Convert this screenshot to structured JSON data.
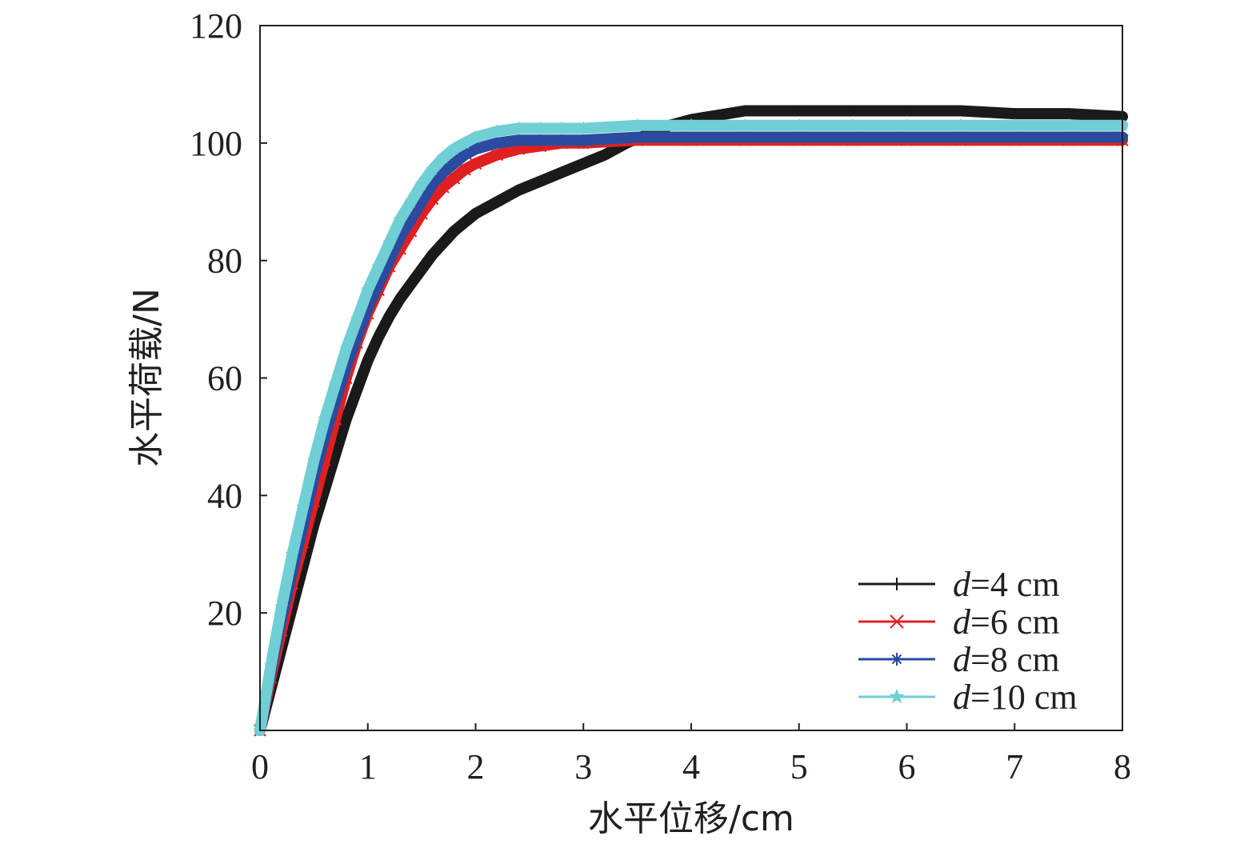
{
  "chart_data": {
    "type": "line",
    "xlabel": "水平位移/cm",
    "ylabel": "水平荷载/N",
    "xlim": [
      0,
      8
    ],
    "ylim": [
      0,
      120
    ],
    "xticks": [
      0,
      1,
      2,
      3,
      4,
      5,
      6,
      7,
      8
    ],
    "yticks": [
      20,
      40,
      60,
      80,
      100,
      120
    ],
    "xtick_labels": [
      "0",
      "1",
      "2",
      "3",
      "4",
      "5",
      "6",
      "7",
      "8"
    ],
    "ytick_labels": [
      "20",
      "40",
      "60",
      "80",
      "100",
      "120"
    ],
    "grid": false,
    "legend_position": "bottom-right",
    "series": [
      {
        "name_var": "d",
        "name_rest": "=4 cm",
        "color": "#1a1a1a",
        "marker": "plus",
        "x": [
          0,
          0.1,
          0.2,
          0.3,
          0.4,
          0.5,
          0.6,
          0.7,
          0.8,
          0.9,
          1.0,
          1.1,
          1.2,
          1.3,
          1.4,
          1.5,
          1.6,
          1.7,
          1.8,
          1.9,
          2.0,
          2.2,
          2.4,
          2.6,
          2.8,
          3.0,
          3.2,
          3.4,
          3.6,
          3.8,
          4.0,
          4.5,
          5.0,
          5.5,
          6.0,
          6.5,
          7.0,
          7.5,
          8.0
        ],
        "y": [
          0,
          7,
          14,
          21,
          28,
          35,
          41,
          47,
          53,
          58,
          63,
          67,
          70.5,
          73.5,
          76,
          78.5,
          81,
          83,
          85,
          86.5,
          88,
          90,
          92,
          93.5,
          95,
          96.5,
          98,
          100,
          101.5,
          103,
          104,
          105.5,
          105.5,
          105.5,
          105.5,
          105.5,
          105,
          105,
          104.5
        ]
      },
      {
        "name_var": "d",
        "name_rest": "=6 cm",
        "color": "#e02020",
        "marker": "x",
        "x": [
          0,
          0.1,
          0.2,
          0.3,
          0.4,
          0.5,
          0.6,
          0.7,
          0.8,
          0.9,
          1.0,
          1.1,
          1.2,
          1.3,
          1.4,
          1.5,
          1.6,
          1.7,
          1.8,
          1.9,
          2.0,
          2.2,
          2.4,
          2.6,
          2.8,
          3.0,
          3.5,
          4.0,
          4.5,
          5.0,
          5.5,
          6.0,
          6.5,
          7.0,
          7.5,
          8.0
        ],
        "y": [
          0,
          9,
          17,
          25,
          32,
          39,
          46,
          53,
          60,
          66,
          71,
          75,
          79,
          82,
          85,
          88,
          90.5,
          92.5,
          94,
          95.5,
          96.5,
          98,
          99,
          99.5,
          100,
          100,
          100.5,
          100.5,
          100.5,
          100.5,
          100.5,
          100.5,
          100.5,
          100.5,
          100.5,
          100.5
        ]
      },
      {
        "name_var": "d",
        "name_rest": "=8 cm",
        "color": "#2a4ba0",
        "marker": "asterisk",
        "x": [
          0,
          0.1,
          0.2,
          0.3,
          0.4,
          0.5,
          0.6,
          0.7,
          0.8,
          0.9,
          1.0,
          1.1,
          1.2,
          1.3,
          1.4,
          1.5,
          1.6,
          1.7,
          1.8,
          1.9,
          2.0,
          2.2,
          2.4,
          2.6,
          2.8,
          3.0,
          3.5,
          4.0,
          4.5,
          5.0,
          5.5,
          6.0,
          6.5,
          7.0,
          7.5,
          8.0
        ],
        "y": [
          0,
          10,
          19,
          27,
          35,
          43,
          50,
          56,
          62,
          67,
          72,
          76,
          80,
          84,
          87,
          90,
          93,
          95,
          96.5,
          98,
          99,
          100,
          100.5,
          100.5,
          100.5,
          100.5,
          101,
          101,
          101,
          101,
          101,
          101,
          101,
          101,
          101,
          101
        ]
      },
      {
        "name_var": "d",
        "name_rest": "=10 cm",
        "color": "#6fcfd4",
        "marker": "star",
        "x": [
          0,
          0.1,
          0.2,
          0.3,
          0.4,
          0.5,
          0.6,
          0.7,
          0.8,
          0.9,
          1.0,
          1.1,
          1.2,
          1.3,
          1.4,
          1.5,
          1.6,
          1.7,
          1.8,
          1.9,
          2.0,
          2.2,
          2.4,
          2.6,
          2.8,
          3.0,
          3.5,
          4.0,
          4.5,
          5.0,
          5.5,
          6.0,
          6.5,
          7.0,
          7.5,
          8.0
        ],
        "y": [
          0,
          11,
          21,
          30,
          38,
          46,
          53,
          59,
          65,
          70,
          75,
          79,
          83,
          87,
          90,
          93,
          95.5,
          97.5,
          99,
          100,
          101,
          102,
          102.5,
          102.5,
          102.5,
          102.5,
          103,
          103,
          103,
          103,
          103,
          103,
          103,
          103,
          103,
          103
        ]
      }
    ]
  }
}
